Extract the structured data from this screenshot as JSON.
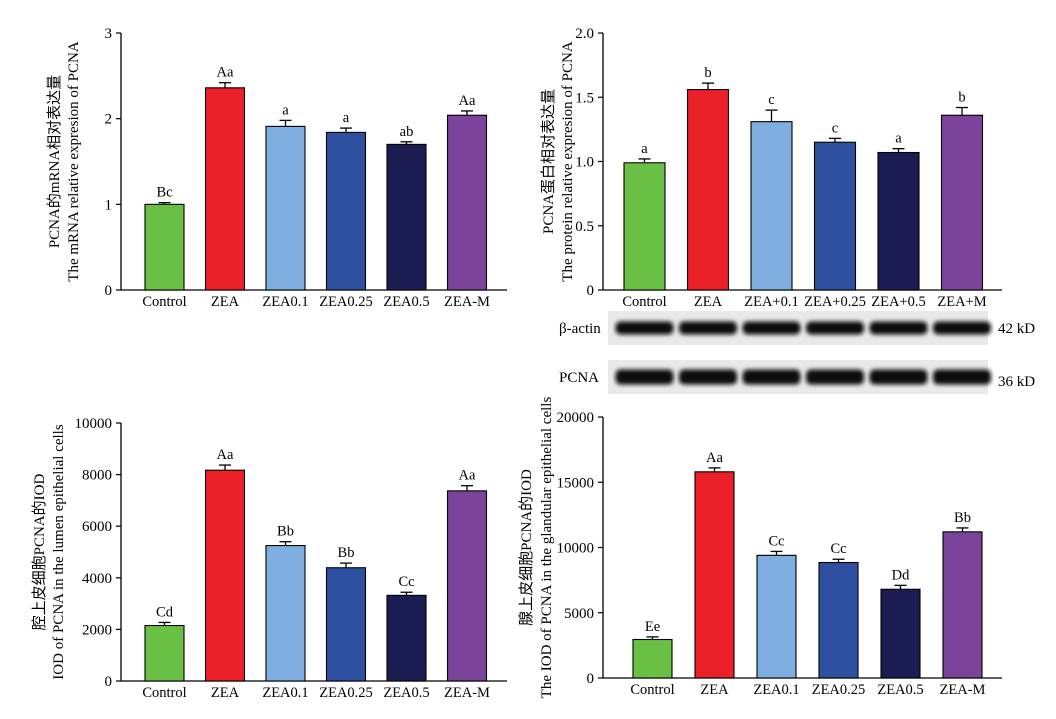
{
  "chart_data": [
    {
      "type": "bar",
      "categories": [
        "Control",
        "ZEA",
        "ZEA0.1",
        "ZEA0.25",
        "ZEA0.5",
        "ZEA-M"
      ],
      "values": [
        1.0,
        2.36,
        1.91,
        1.84,
        1.7,
        2.04
      ],
      "errors": [
        0.02,
        0.06,
        0.07,
        0.05,
        0.03,
        0.05
      ],
      "significance_labels": [
        "Bc",
        "Aa",
        "a",
        "a",
        "ab",
        "Aa"
      ],
      "ylabel": [
        "PCNA的mRNA相对表达量",
        "The mRNA relative expresion of PCNA"
      ],
      "ylim": [
        0,
        3
      ],
      "yticks": [
        "0",
        "1",
        "2",
        "3"
      ],
      "colors": [
        "#6abf45",
        "#ec2029",
        "#7fafe0",
        "#2f4fa0",
        "#1b1d52",
        "#7b449a"
      ]
    },
    {
      "type": "bar",
      "categories": [
        "Control",
        "ZEA",
        "ZEA+0.1",
        "ZEA+0.25",
        "ZEA+0.5",
        "ZEA+M"
      ],
      "values": [
        0.99,
        1.56,
        1.31,
        1.15,
        1.07,
        1.36
      ],
      "errors": [
        0.03,
        0.05,
        0.09,
        0.03,
        0.03,
        0.06
      ],
      "significance_labels": [
        "a",
        "b",
        "c",
        "c",
        "a",
        "b"
      ],
      "ylabel": [
        "PCNA蛋白相对表达量",
        "The protein relative expresion of PCNA"
      ],
      "ylim": [
        0,
        2.0
      ],
      "yticks": [
        "0",
        "0.5",
        "1.0",
        "1.5",
        "2.0"
      ],
      "colors": [
        "#6abf45",
        "#ec2029",
        "#7fafe0",
        "#2f4fa0",
        "#1b1d52",
        "#7b449a"
      ]
    },
    {
      "type": "bar",
      "categories": [
        "Control",
        "ZEA",
        "ZEA0.1",
        "ZEA0.25",
        "ZEA0.5",
        "ZEA-M"
      ],
      "values": [
        2150,
        8170,
        5250,
        4390,
        3320,
        7370
      ],
      "errors": [
        120,
        200,
        150,
        180,
        120,
        200
      ],
      "significance_labels": [
        "Cd",
        "Aa",
        "Bb",
        "Bb",
        "Cc",
        "Aa"
      ],
      "ylabel": [
        "腔上皮细胞PCNA的IOD",
        "IOD of PCNA in the lumen epithelial cells"
      ],
      "ylim": [
        0,
        10000
      ],
      "yticks": [
        "0",
        "2000",
        "4000",
        "6000",
        "8000",
        "10000"
      ],
      "colors": [
        "#6abf45",
        "#ec2029",
        "#7fafe0",
        "#2f4fa0",
        "#1b1d52",
        "#7b449a"
      ]
    },
    {
      "type": "bar",
      "categories": [
        "Control",
        "ZEA",
        "ZEA0.1",
        "ZEA0.25",
        "ZEA0.5",
        "ZEA-M"
      ],
      "values": [
        2950,
        15800,
        9400,
        8850,
        6800,
        11200
      ],
      "errors": [
        200,
        300,
        300,
        250,
        300,
        300
      ],
      "significance_labels": [
        "Ee",
        "Aa",
        "Cc",
        "Cc",
        "Dd",
        "Bb"
      ],
      "ylabel": [
        "腺上皮细胞PCNA的IOD",
        "The IOD of PCNA in the glandular epithelial cells"
      ],
      "ylim": [
        0,
        20000
      ],
      "yticks": [
        "0",
        "5000",
        "10000",
        "15000",
        "20000"
      ],
      "colors": [
        "#6abf45",
        "#ec2029",
        "#7fafe0",
        "#2f4fa0",
        "#1b1d52",
        "#7b449a"
      ]
    }
  ],
  "western_blot": {
    "rows": [
      {
        "name": "β-actin",
        "size": "42 kD"
      },
      {
        "name": "PCNA",
        "size": "36 kD"
      }
    ]
  }
}
